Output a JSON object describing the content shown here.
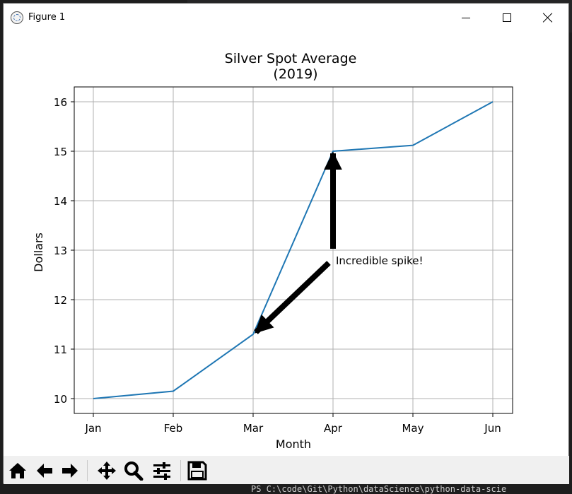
{
  "window": {
    "title": "Figure 1"
  },
  "toolbar": {
    "buttons": [
      "home-icon",
      "back-arrow-icon",
      "forward-arrow-icon",
      "pan-move-icon",
      "zoom-magnifier-icon",
      "subplots-config-icon",
      "save-floppy-icon"
    ]
  },
  "background": {
    "terminal_text": "PS C:\\code\\Git\\Python\\dataScience\\python-data-scie"
  },
  "chart_data": {
    "type": "line",
    "title": "Silver Spot Average",
    "subtitle": "(2019)",
    "xlabel": "Month",
    "ylabel": "Dollars",
    "categories": [
      "Jan",
      "Feb",
      "Mar",
      "Apr",
      "May",
      "Jun"
    ],
    "series": [
      {
        "values": [
          10.0,
          10.15,
          11.3,
          15.0,
          15.12,
          16.0
        ],
        "color": "#1f77b4"
      }
    ],
    "yticks": [
      10,
      11,
      12,
      13,
      14,
      15,
      16
    ],
    "ylim": [
      9.7,
      16.3
    ],
    "grid": true,
    "annotation": {
      "text": "Incredible spike!",
      "text_at": {
        "x": "Apr",
        "y": 12.8
      },
      "arrows_to": [
        {
          "x": "Apr",
          "y": 15.0
        },
        {
          "x": "Mar",
          "y": 11.3
        }
      ],
      "arrow_color": "#000000"
    }
  }
}
